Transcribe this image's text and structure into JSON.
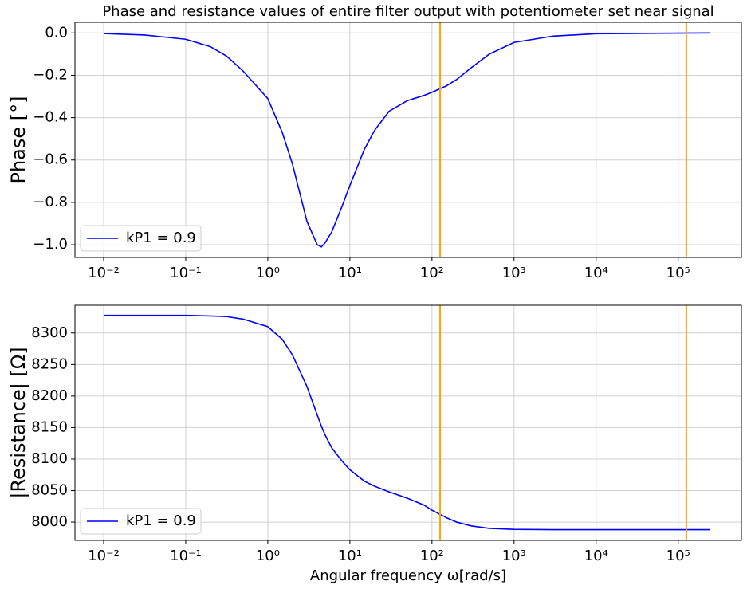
{
  "chart_data": [
    {
      "type": "line",
      "title": "Phase and resistance values of entire filter output with potentiometer set near signal",
      "ylabel": "Phase [°]",
      "xscale": "log",
      "x": [
        0.01,
        0.0316,
        0.1,
        0.2,
        0.316,
        0.5,
        1,
        1.5,
        2,
        3,
        4,
        4.5,
        5,
        6,
        8,
        10,
        15,
        20,
        30,
        50,
        80,
        100,
        150,
        200,
        300,
        500,
        1000,
        3000,
        10000,
        100000,
        245000
      ],
      "series": [
        {
          "name": "kP1 = 0.9",
          "color": "#0000ff",
          "values": [
            -0.003,
            -0.01,
            -0.03,
            -0.065,
            -0.11,
            -0.18,
            -0.31,
            -0.47,
            -0.62,
            -0.89,
            -1.0,
            -1.01,
            -0.99,
            -0.94,
            -0.82,
            -0.72,
            -0.55,
            -0.46,
            -0.37,
            -0.32,
            -0.295,
            -0.28,
            -0.25,
            -0.22,
            -0.165,
            -0.1,
            -0.045,
            -0.015,
            -0.004,
            -0.001,
            0
          ]
        }
      ],
      "vlines": [
        125.66,
        125663
      ],
      "vline_color": "#ffa500",
      "xlim": [
        0.00447,
        589000
      ],
      "ylim": [
        -1.06,
        0.05
      ],
      "xticks": [
        {
          "value": 0.01,
          "label": "10⁻²"
        },
        {
          "value": 0.1,
          "label": "10⁻¹"
        },
        {
          "value": 1,
          "label": "10⁰"
        },
        {
          "value": 10,
          "label": "10¹"
        },
        {
          "value": 100,
          "label": "10²"
        },
        {
          "value": 1000,
          "label": "10³"
        },
        {
          "value": 10000,
          "label": "10⁴"
        },
        {
          "value": 100000,
          "label": "10⁵"
        }
      ],
      "yticks": [
        {
          "value": 0,
          "label": "0.0"
        },
        {
          "value": -0.2,
          "label": "−0.2"
        },
        {
          "value": -0.4,
          "label": "−0.4"
        },
        {
          "value": -0.6,
          "label": "−0.6"
        },
        {
          "value": -0.8,
          "label": "−0.8"
        },
        {
          "value": -1.0,
          "label": "−1.0"
        }
      ],
      "grid": true,
      "legend": "lower left"
    },
    {
      "type": "line",
      "ylabel": "|Resistance| [Ω]",
      "xlabel": "Angular frequency ω[rad/s]",
      "xscale": "log",
      "x": [
        0.01,
        0.0316,
        0.1,
        0.2,
        0.316,
        0.5,
        1,
        1.5,
        2,
        3,
        4,
        4.5,
        5,
        6,
        8,
        10,
        15,
        20,
        30,
        50,
        80,
        100,
        150,
        200,
        300,
        500,
        1000,
        3000,
        10000,
        100000,
        245000
      ],
      "series": [
        {
          "name": "kP1 = 0.9",
          "color": "#0000ff",
          "values": [
            8328,
            8328,
            8328,
            8327,
            8326,
            8322,
            8310,
            8290,
            8265,
            8215,
            8170,
            8152,
            8138,
            8118,
            8097,
            8083,
            8065,
            8057,
            8048,
            8038,
            8027,
            8019,
            8007,
            8000,
            7994,
            7990,
            7988.5,
            7988,
            7988,
            7988,
            7988
          ]
        }
      ],
      "vlines": [
        125.66,
        125663
      ],
      "vline_color": "#ffa500",
      "xlim": [
        0.00447,
        589000
      ],
      "ylim": [
        7971,
        8344
      ],
      "xticks": [
        {
          "value": 0.01,
          "label": "10⁻²"
        },
        {
          "value": 0.1,
          "label": "10⁻¹"
        },
        {
          "value": 1,
          "label": "10⁰"
        },
        {
          "value": 10,
          "label": "10¹"
        },
        {
          "value": 100,
          "label": "10²"
        },
        {
          "value": 1000,
          "label": "10³"
        },
        {
          "value": 10000,
          "label": "10⁴"
        },
        {
          "value": 100000,
          "label": "10⁵"
        }
      ],
      "yticks": [
        8000,
        8050,
        8100,
        8150,
        8200,
        8250,
        8300
      ],
      "grid": true,
      "legend": "lower left"
    }
  ]
}
